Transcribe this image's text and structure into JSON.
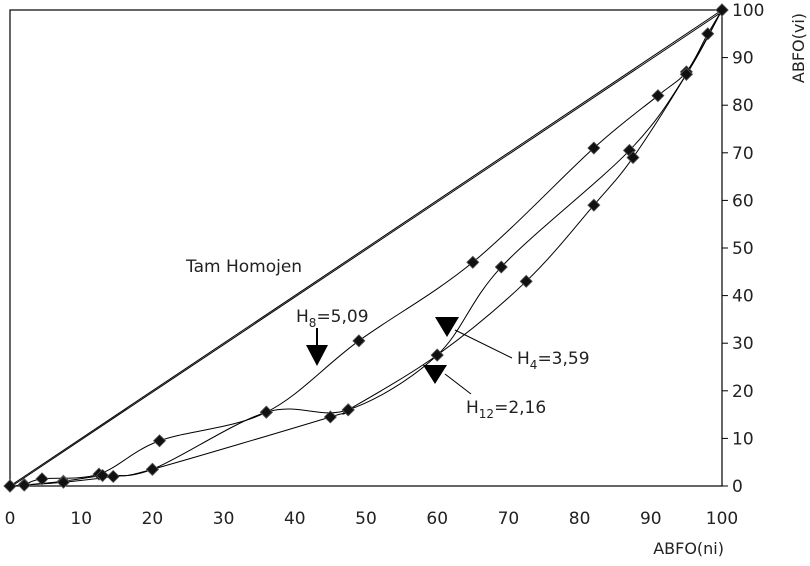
{
  "chart_data": {
    "type": "line",
    "xlabel": "ABFO(ni)",
    "ylabel": "ABFO(vi)",
    "xlim": [
      0,
      100
    ],
    "ylim": [
      0,
      100
    ],
    "xticks": [
      "0",
      "10",
      "20",
      "30",
      "40",
      "50",
      "60",
      "70",
      "80",
      "90",
      "100"
    ],
    "yticks": [
      "0",
      "10",
      "20",
      "30",
      "40",
      "50",
      "60",
      "70",
      "80",
      "90",
      "100"
    ],
    "grid": false,
    "series": [
      {
        "name": "Tam Homojen",
        "marker": false,
        "points": [
          [
            0,
            0
          ],
          [
            100,
            100
          ]
        ]
      },
      {
        "name": "H8=5,09",
        "marker": true,
        "points": [
          [
            0,
            0
          ],
          [
            2,
            0.3
          ],
          [
            4.5,
            1.5
          ],
          [
            12.5,
            2.5
          ],
          [
            21,
            9.5
          ],
          [
            36,
            15.5
          ],
          [
            49,
            30.5
          ],
          [
            65,
            47
          ],
          [
            82,
            71
          ],
          [
            91,
            82
          ],
          [
            95,
            87
          ],
          [
            98,
            95
          ],
          [
            100,
            100
          ]
        ]
      },
      {
        "name": "H4=3,59",
        "marker": true,
        "points": [
          [
            0,
            0
          ],
          [
            2,
            0.2
          ],
          [
            7.5,
            1
          ],
          [
            13,
            2.2
          ],
          [
            20,
            3.5
          ],
          [
            36,
            15.5
          ],
          [
            47.5,
            16
          ],
          [
            60,
            27.5
          ],
          [
            69,
            46
          ],
          [
            87,
            70.5
          ],
          [
            95,
            86.5
          ],
          [
            100,
            100
          ]
        ]
      },
      {
        "name": "H12=2,16",
        "marker": true,
        "points": [
          [
            0,
            0
          ],
          [
            2,
            0.2
          ],
          [
            7.5,
            0.8
          ],
          [
            14.5,
            2
          ],
          [
            20,
            3.5
          ],
          [
            45,
            14.5
          ],
          [
            47.5,
            16
          ],
          [
            60,
            27.5
          ],
          [
            72.5,
            43
          ],
          [
            82,
            59
          ],
          [
            87.5,
            69
          ],
          [
            95,
            86.5
          ],
          [
            100,
            100
          ]
        ]
      }
    ],
    "annotations": [
      {
        "text": "Tam Homojen",
        "kind": "label"
      },
      {
        "main": "H",
        "sub": "8",
        "rest": "=5,09",
        "kind": "arrow-label"
      },
      {
        "main": "H",
        "sub": "4",
        "rest": "=3,59",
        "kind": "arrow-label"
      },
      {
        "main": "H",
        "sub": "12",
        "rest": "=2,16",
        "kind": "arrow-label"
      }
    ]
  }
}
